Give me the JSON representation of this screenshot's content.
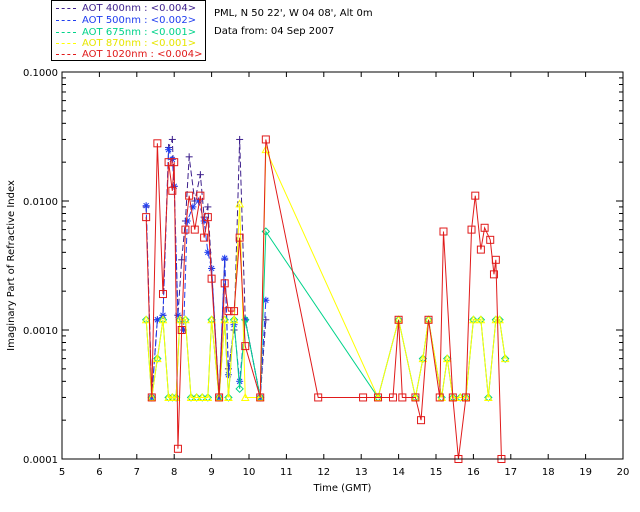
{
  "header": {
    "site": "PML, N 50 22', W 04 08', Alt 0m",
    "date": "Data from: 04 Sep 2007"
  },
  "legend": [
    {
      "label": "AOT  400nm : <0.004>",
      "color": "#3d1f8c"
    },
    {
      "label": "AOT  500nm : <0.002>",
      "color": "#1f3df0"
    },
    {
      "label": "AOT  675nm : <0.001>",
      "color": "#00d38a"
    },
    {
      "label": "AOT  870nm : <0.001>",
      "color": "#ffff00"
    },
    {
      "label": "AOT 1020nm : <0.004>",
      "color": "#e01a1a"
    }
  ],
  "chart_data": {
    "type": "line",
    "xlabel": "Time (GMT)",
    "ylabel": "Imaginary Part of Refractive Index",
    "xlim": [
      5,
      20
    ],
    "ylim": [
      0.0001,
      0.1
    ],
    "yscale": "log",
    "xticks": [
      "5",
      "6",
      "7",
      "8",
      "9",
      "10",
      "11",
      "12",
      "13",
      "14",
      "15",
      "16",
      "17",
      "18",
      "19",
      "20"
    ],
    "yticks": [
      "0.0001",
      "0.0010",
      "0.0100",
      "0.1000"
    ],
    "series": [
      {
        "name": "AOT  400nm : <0.004>",
        "color": "#3d1f8c",
        "marker": "plus",
        "points": [
          [
            7.25,
            0.009
          ],
          [
            7.4,
            0.0003
          ],
          [
            7.55,
            0.0012
          ],
          [
            7.7,
            0.0013
          ],
          [
            7.85,
            0.026
          ],
          [
            7.95,
            0.03
          ],
          [
            8.0,
            0.013
          ],
          [
            8.1,
            0.0013
          ],
          [
            8.2,
            0.0035
          ],
          [
            8.3,
            0.007
          ],
          [
            8.4,
            0.022
          ],
          [
            8.55,
            0.01
          ],
          [
            8.7,
            0.016
          ],
          [
            8.8,
            0.0075
          ],
          [
            8.9,
            0.009
          ],
          [
            9.0,
            0.003
          ],
          [
            9.2,
            0.0003
          ],
          [
            9.35,
            0.0035
          ],
          [
            9.45,
            0.0005
          ],
          [
            9.6,
            0.001
          ],
          [
            9.75,
            0.03
          ],
          [
            9.9,
            0.0012
          ],
          [
            10.3,
            0.0003
          ],
          [
            10.45,
            0.0012
          ]
        ]
      },
      {
        "name": "AOT  500nm : <0.002>",
        "color": "#1f3df0",
        "marker": "star",
        "points": [
          [
            7.25,
            0.0092
          ],
          [
            7.4,
            0.0003
          ],
          [
            7.55,
            0.0012
          ],
          [
            7.7,
            0.0013
          ],
          [
            7.85,
            0.025
          ],
          [
            7.95,
            0.021
          ],
          [
            8.0,
            0.013
          ],
          [
            8.1,
            0.0013
          ],
          [
            8.25,
            0.001
          ],
          [
            8.35,
            0.007
          ],
          [
            8.5,
            0.009
          ],
          [
            8.65,
            0.01
          ],
          [
            8.8,
            0.007
          ],
          [
            8.9,
            0.004
          ],
          [
            9.0,
            0.003
          ],
          [
            9.2,
            0.0003
          ],
          [
            9.35,
            0.0036
          ],
          [
            9.45,
            0.00045
          ],
          [
            9.6,
            0.0011
          ],
          [
            9.75,
            0.0004
          ],
          [
            9.9,
            0.0012
          ],
          [
            10.3,
            0.0003
          ],
          [
            10.45,
            0.0017
          ]
        ]
      },
      {
        "name": "AOT  675nm : <0.001>",
        "color": "#00d38a",
        "marker": "diamond",
        "points": [
          [
            7.25,
            0.0012
          ],
          [
            7.4,
            0.0003
          ],
          [
            7.55,
            0.0006
          ],
          [
            7.7,
            0.0012
          ],
          [
            7.85,
            0.0003
          ],
          [
            7.95,
            0.0003
          ],
          [
            8.05,
            0.0003
          ],
          [
            8.15,
            0.0012
          ],
          [
            8.3,
            0.0012
          ],
          [
            8.45,
            0.0003
          ],
          [
            8.6,
            0.0003
          ],
          [
            8.75,
            0.0003
          ],
          [
            8.9,
            0.0003
          ],
          [
            9.0,
            0.0012
          ],
          [
            9.2,
            0.0003
          ],
          [
            9.35,
            0.0012
          ],
          [
            9.45,
            0.0003
          ],
          [
            9.6,
            0.0012
          ],
          [
            9.75,
            0.00035
          ],
          [
            9.9,
            0.0012
          ],
          [
            10.3,
            0.0003
          ],
          [
            10.45,
            0.0058
          ],
          [
            13.45,
            0.0003
          ],
          [
            14.0,
            0.0012
          ],
          [
            14.45,
            0.0003
          ],
          [
            14.65,
            0.0006
          ],
          [
            14.8,
            0.0012
          ],
          [
            15.15,
            0.0003
          ],
          [
            15.3,
            0.0006
          ],
          [
            15.45,
            0.0003
          ],
          [
            15.65,
            0.0003
          ],
          [
            15.8,
            0.0003
          ],
          [
            16.0,
            0.0012
          ],
          [
            16.2,
            0.0012
          ],
          [
            16.4,
            0.0003
          ],
          [
            16.6,
            0.0012
          ],
          [
            16.7,
            0.0012
          ],
          [
            16.85,
            0.0006
          ]
        ]
      },
      {
        "name": "AOT  870nm : <0.001>",
        "color": "#ffff00",
        "marker": "triangle",
        "points": [
          [
            7.25,
            0.0012
          ],
          [
            7.4,
            0.0003
          ],
          [
            7.55,
            0.0006
          ],
          [
            7.7,
            0.0012
          ],
          [
            7.85,
            0.0003
          ],
          [
            7.95,
            0.0003
          ],
          [
            8.05,
            0.0003
          ],
          [
            8.15,
            0.0012
          ],
          [
            8.3,
            0.0012
          ],
          [
            8.45,
            0.0003
          ],
          [
            8.6,
            0.0003
          ],
          [
            8.75,
            0.0003
          ],
          [
            8.9,
            0.0003
          ],
          [
            9.0,
            0.0012
          ],
          [
            9.2,
            0.0003
          ],
          [
            9.35,
            0.0012
          ],
          [
            9.45,
            0.0003
          ],
          [
            9.6,
            0.0012
          ],
          [
            9.75,
            0.0095
          ],
          [
            9.9,
            0.0003
          ],
          [
            10.3,
            0.0003
          ],
          [
            10.45,
            0.025
          ],
          [
            13.45,
            0.0003
          ],
          [
            14.0,
            0.0012
          ],
          [
            14.45,
            0.0003
          ],
          [
            14.65,
            0.0006
          ],
          [
            14.8,
            0.0012
          ],
          [
            15.15,
            0.0003
          ],
          [
            15.3,
            0.0006
          ],
          [
            15.45,
            0.0003
          ],
          [
            15.65,
            0.0003
          ],
          [
            15.8,
            0.0003
          ],
          [
            16.0,
            0.0012
          ],
          [
            16.2,
            0.0012
          ],
          [
            16.4,
            0.0003
          ],
          [
            16.6,
            0.0012
          ],
          [
            16.7,
            0.0012
          ],
          [
            16.85,
            0.0006
          ]
        ]
      },
      {
        "name": "AOT 1020nm : <0.004>",
        "color": "#e01a1a",
        "marker": "square",
        "points": [
          [
            7.25,
            0.0075
          ],
          [
            7.4,
            0.0003
          ],
          [
            7.55,
            0.028
          ],
          [
            7.7,
            0.0019
          ],
          [
            7.85,
            0.02
          ],
          [
            7.95,
            0.012
          ],
          [
            8.0,
            0.02
          ],
          [
            8.1,
            0.00012
          ],
          [
            8.2,
            0.001
          ],
          [
            8.3,
            0.006
          ],
          [
            8.4,
            0.011
          ],
          [
            8.55,
            0.006
          ],
          [
            8.7,
            0.011
          ],
          [
            8.8,
            0.0052
          ],
          [
            8.9,
            0.0075
          ],
          [
            9.0,
            0.0025
          ],
          [
            9.2,
            0.0003
          ],
          [
            9.35,
            0.0023
          ],
          [
            9.45,
            0.0014
          ],
          [
            9.6,
            0.0014
          ],
          [
            9.75,
            0.0052
          ],
          [
            9.9,
            0.00075
          ],
          [
            10.3,
            0.0003
          ],
          [
            10.45,
            0.03
          ],
          [
            11.85,
            0.0003
          ],
          [
            13.05,
            0.0003
          ],
          [
            13.45,
            0.0003
          ],
          [
            13.85,
            0.0003
          ],
          [
            14.0,
            0.0012
          ],
          [
            14.1,
            0.0003
          ],
          [
            14.45,
            0.0003
          ],
          [
            14.6,
            0.0002
          ],
          [
            14.8,
            0.0012
          ],
          [
            15.1,
            0.0003
          ],
          [
            15.2,
            0.0058
          ],
          [
            15.45,
            0.0003
          ],
          [
            15.6,
            0.0001
          ],
          [
            15.8,
            0.0003
          ],
          [
            15.95,
            0.006
          ],
          [
            16.05,
            0.011
          ],
          [
            16.2,
            0.0042
          ],
          [
            16.3,
            0.0062
          ],
          [
            16.45,
            0.005
          ],
          [
            16.55,
            0.0027
          ],
          [
            16.6,
            0.0035
          ],
          [
            16.75,
            0.0001
          ]
        ]
      }
    ]
  }
}
